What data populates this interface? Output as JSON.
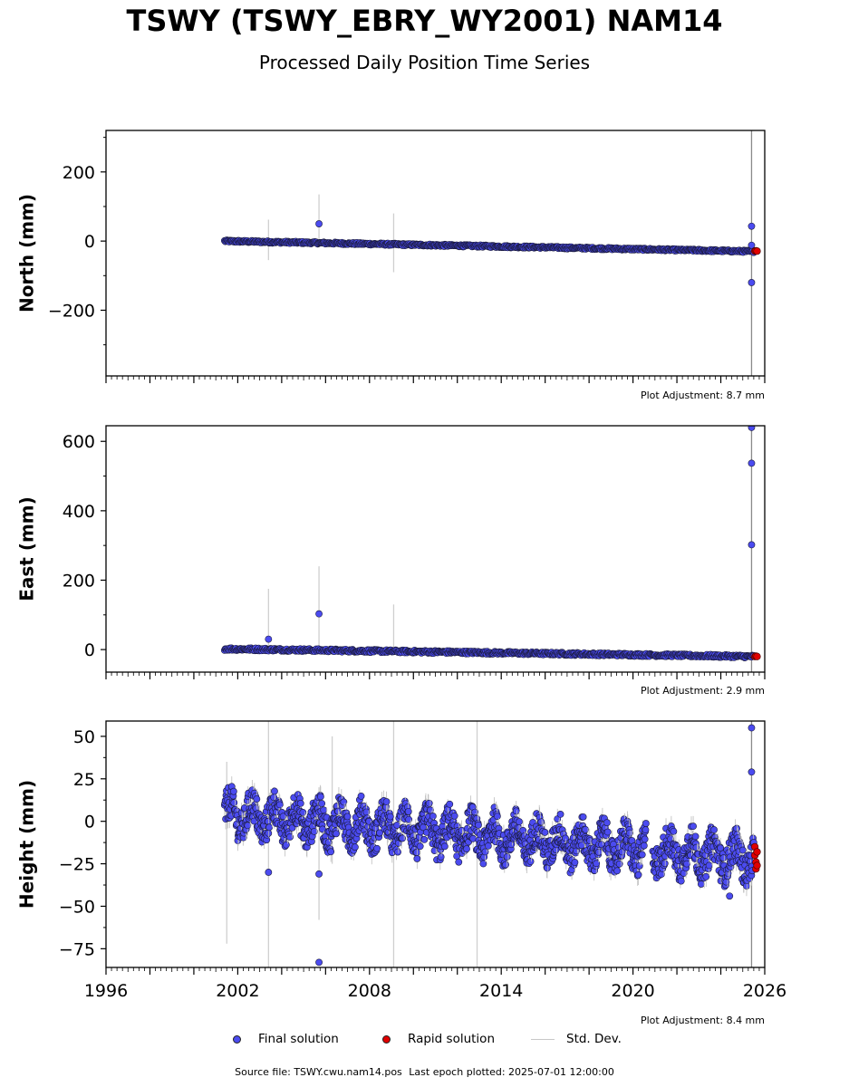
{
  "header": {
    "title": "TSWY (TSWY_EBRY_WY2001) NAM14",
    "subtitle": "Processed Daily Position Time Series"
  },
  "legend": {
    "final": "Final solution",
    "rapid": "Rapid solution",
    "std": "Std. Dev."
  },
  "footer": {
    "source": "Source file: TSWY.cwu.nam14.pos",
    "last_epoch": "Last epoch plotted: 2025-07-01 12:00:00"
  },
  "colors": {
    "final": "#4b4bf0",
    "rapid": "#e00000",
    "stddev": "#cfcfcf",
    "edge": "#1a1a3a"
  },
  "chart_data": [
    {
      "type": "scatter",
      "ylabel": "North (mm)",
      "adjustment": "Plot Adjustment: 8.7 mm",
      "xlim": [
        1996,
        2026
      ],
      "ylim": [
        -390,
        320
      ],
      "yticks": [
        200,
        0,
        -200
      ],
      "ytick_labels": [
        "200",
        "0",
        "−200"
      ],
      "trend": [
        [
          2001.4,
          0
        ],
        [
          2025.5,
          -30
        ]
      ],
      "scatter": 3,
      "outliers": [
        [
          2005.7,
          50
        ],
        [
          2025.4,
          43
        ],
        [
          2025.4,
          -12
        ],
        [
          2025.4,
          -120
        ]
      ],
      "stddev_bars": [
        [
          2003.4,
          -55,
          62
        ],
        [
          2005.7,
          -10,
          135
        ],
        [
          2009.1,
          -90,
          80
        ],
        [
          2025.4,
          -390,
          320
        ]
      ],
      "rapid": [
        [
          2025.55,
          -29
        ],
        [
          2025.6,
          -28
        ],
        [
          2025.65,
          -29
        ]
      ]
    },
    {
      "type": "scatter",
      "ylabel": "East (mm)",
      "adjustment": "Plot Adjustment: 2.9 mm",
      "xlim": [
        1996,
        2026
      ],
      "ylim": [
        -65,
        645
      ],
      "yticks": [
        600,
        400,
        200,
        0
      ],
      "ytick_labels": [
        "600",
        "400",
        "200",
        "0"
      ],
      "trend": [
        [
          2001.4,
          2
        ],
        [
          2025.5,
          -20
        ]
      ],
      "scatter": 4,
      "outliers": [
        [
          2003.4,
          30
        ],
        [
          2005.7,
          103
        ],
        [
          2025.4,
          640
        ],
        [
          2025.4,
          537
        ],
        [
          2025.4,
          302
        ]
      ],
      "stddev_bars": [
        [
          2003.4,
          -10,
          175
        ],
        [
          2005.7,
          -8,
          240
        ],
        [
          2009.1,
          -15,
          130
        ],
        [
          2025.4,
          -65,
          645
        ]
      ],
      "rapid": [
        [
          2025.55,
          -20
        ],
        [
          2025.6,
          -19
        ],
        [
          2025.65,
          -20
        ]
      ]
    },
    {
      "type": "scatter",
      "ylabel": "Height (mm)",
      "adjustment": "Plot Adjustment: 8.4 mm",
      "xlim": [
        1996,
        2026
      ],
      "ylim": [
        -86,
        59
      ],
      "yticks": [
        50,
        25,
        0,
        -25,
        -50,
        -75
      ],
      "ytick_labels": [
        "50",
        "25",
        "0",
        "−25",
        "−50",
        "−75"
      ],
      "xticks": [
        1996,
        2002,
        2008,
        2014,
        2020,
        2026
      ],
      "xtick_labels": [
        "1996",
        "2002",
        "2008",
        "2014",
        "2020",
        "2026"
      ],
      "trend": [
        [
          2001.4,
          4
        ],
        [
          2025.5,
          -22
        ]
      ],
      "scatter": 10,
      "outliers": [
        [
          2003.4,
          -30
        ],
        [
          2005.7,
          -31
        ],
        [
          2005.7,
          -83
        ],
        [
          2025.4,
          55
        ],
        [
          2025.4,
          29
        ],
        [
          2024.4,
          -44
        ]
      ],
      "stddev_bars": [
        [
          2001.5,
          -72,
          35
        ],
        [
          2003.4,
          -86,
          59
        ],
        [
          2005.7,
          -58,
          20
        ],
        [
          2006.3,
          -25,
          50
        ],
        [
          2009.1,
          -86,
          59
        ],
        [
          2012.9,
          -86,
          59
        ],
        [
          2025.4,
          -86,
          59
        ]
      ],
      "rapid": [
        [
          2025.55,
          -15
        ],
        [
          2025.55,
          -20
        ],
        [
          2025.6,
          -24
        ],
        [
          2025.6,
          -28
        ],
        [
          2025.65,
          -18
        ],
        [
          2025.65,
          -26
        ]
      ]
    }
  ]
}
